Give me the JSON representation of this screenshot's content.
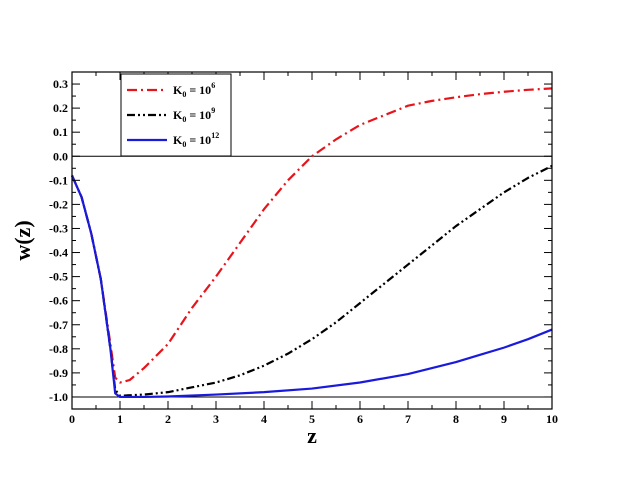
{
  "chart_data": {
    "type": "line",
    "title": "",
    "xlabel": "z",
    "ylabel": "w(z)",
    "xlim": [
      0,
      10
    ],
    "ylim": [
      -1.05,
      0.35
    ],
    "xticks": [
      0,
      1,
      2,
      3,
      4,
      5,
      6,
      7,
      8,
      9,
      10
    ],
    "xtick_labels": [
      "0",
      "1",
      "2",
      "3",
      "4",
      "5",
      "6",
      "7",
      "8",
      "9",
      "10"
    ],
    "yticks": [
      -1.0,
      -0.9,
      -0.8,
      -0.7,
      -0.6,
      -0.5,
      -0.4,
      -0.3,
      -0.2,
      -0.1,
      0.0,
      0.1,
      0.2,
      0.3
    ],
    "ytick_labels": [
      "-1.0",
      "-0.9",
      "-0.8",
      "-0.7",
      "-0.6",
      "-0.5",
      "-0.4",
      "-0.3",
      "-0.2",
      "-0.1",
      "0.0",
      "0.1",
      "0.2",
      "0.3"
    ],
    "reference_lines_y": [
      0.0,
      -1.0
    ],
    "grid": false,
    "legend_position": "top-left",
    "series": [
      {
        "name": "K0 = 10^6",
        "legend_label": {
          "base": "K",
          "sub": "0",
          "mid": " = 10",
          "sup": "6"
        },
        "color": "#e8141c",
        "dash": "dash-dot",
        "x": [
          0,
          0.2,
          0.4,
          0.6,
          0.8,
          0.9,
          1.0,
          1.2,
          1.5,
          2.0,
          2.5,
          3.0,
          3.5,
          4.0,
          4.5,
          5.0,
          5.5,
          6.0,
          6.5,
          7.0,
          7.5,
          8.0,
          8.5,
          9.0,
          9.5,
          10.0
        ],
        "y": [
          -0.08,
          -0.17,
          -0.32,
          -0.51,
          -0.78,
          -0.92,
          -0.94,
          -0.93,
          -0.88,
          -0.78,
          -0.63,
          -0.5,
          -0.36,
          -0.22,
          -0.1,
          0.0,
          0.07,
          0.13,
          0.17,
          0.21,
          0.23,
          0.245,
          0.258,
          0.268,
          0.276,
          0.282
        ]
      },
      {
        "name": "K0 = 10^9",
        "legend_label": {
          "base": "K",
          "sub": "0",
          "mid": " = 10",
          "sup": "9"
        },
        "color": "#000000",
        "dash": "dash-dot-dot",
        "x": [
          0,
          0.2,
          0.4,
          0.6,
          0.8,
          0.9,
          1.0,
          1.5,
          2.0,
          2.5,
          3.0,
          3.5,
          4.0,
          4.5,
          5.0,
          5.5,
          6.0,
          6.5,
          7.0,
          7.5,
          8.0,
          8.5,
          9.0,
          9.5,
          10.0
        ],
        "y": [
          -0.08,
          -0.17,
          -0.32,
          -0.51,
          -0.8,
          -0.97,
          -0.995,
          -0.99,
          -0.98,
          -0.96,
          -0.94,
          -0.91,
          -0.87,
          -0.82,
          -0.76,
          -0.69,
          -0.61,
          -0.53,
          -0.45,
          -0.37,
          -0.29,
          -0.22,
          -0.15,
          -0.09,
          -0.04
        ]
      },
      {
        "name": "K0 = 10^12",
        "legend_label": {
          "base": "K",
          "sub": "0",
          "mid": " = 10",
          "sup": "12"
        },
        "color": "#1a1adc",
        "dash": "solid",
        "x": [
          0,
          0.2,
          0.4,
          0.6,
          0.8,
          0.9,
          1.0,
          1.5,
          2.0,
          3.0,
          4.0,
          5.0,
          6.0,
          7.0,
          7.5,
          8.0,
          8.5,
          9.0,
          9.5,
          10.0
        ],
        "y": [
          -0.08,
          -0.17,
          -0.32,
          -0.51,
          -0.8,
          -0.985,
          -1.0,
          -1.0,
          -0.998,
          -0.99,
          -0.98,
          -0.965,
          -0.94,
          -0.905,
          -0.88,
          -0.855,
          -0.825,
          -0.795,
          -0.76,
          -0.72
        ]
      }
    ]
  }
}
